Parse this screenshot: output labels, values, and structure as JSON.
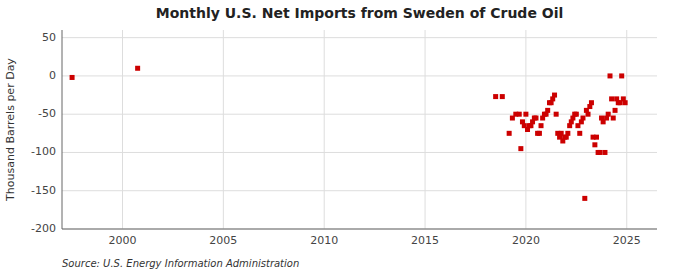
{
  "chart_data": {
    "type": "scatter",
    "title": "Monthly U.S. Net Imports from Sweden of Crude Oil",
    "ylabel": "Thousand Barrels per Day",
    "annotations": [
      "Source: U.S. Energy Information Administration"
    ],
    "color": "#cc0000",
    "marker": "square",
    "grid": true,
    "xlim": [
      1997.0,
      2026.5
    ],
    "ylim": [
      -200,
      60
    ],
    "xticks": [
      2000,
      2005,
      2010,
      2015,
      2020,
      2025
    ],
    "yticks": [
      -200,
      -150,
      -100,
      -50,
      0,
      50
    ],
    "x": [
      1997.5,
      2000.75,
      2018.5,
      2018.83,
      2019.17,
      2019.33,
      2019.5,
      2019.67,
      2019.75,
      2019.83,
      2019.92,
      2020.0,
      2020.08,
      2020.17,
      2020.25,
      2020.33,
      2020.42,
      2020.5,
      2020.58,
      2020.67,
      2020.75,
      2020.83,
      2020.92,
      2021.0,
      2021.08,
      2021.17,
      2021.25,
      2021.33,
      2021.42,
      2021.5,
      2021.58,
      2021.67,
      2021.75,
      2021.83,
      2021.92,
      2022.0,
      2022.08,
      2022.17,
      2022.25,
      2022.33,
      2022.42,
      2022.5,
      2022.58,
      2022.67,
      2022.75,
      2022.83,
      2022.92,
      2023.0,
      2023.08,
      2023.17,
      2023.25,
      2023.33,
      2023.42,
      2023.5,
      2023.58,
      2023.67,
      2023.75,
      2023.83,
      2023.92,
      2024.0,
      2024.08,
      2024.17,
      2024.25,
      2024.33,
      2024.42,
      2024.5,
      2024.58,
      2024.67,
      2024.75,
      2024.83,
      2024.92
    ],
    "values": [
      -2,
      10,
      -27,
      -27,
      -75,
      -55,
      -50,
      -50,
      -95,
      -60,
      -65,
      -50,
      -70,
      -65,
      -65,
      -60,
      -55,
      -55,
      -75,
      -75,
      -65,
      -55,
      -50,
      -50,
      -45,
      -35,
      -35,
      -30,
      -25,
      -50,
      -75,
      -80,
      -75,
      -85,
      -80,
      -80,
      -75,
      -65,
      -60,
      -55,
      -50,
      -50,
      -65,
      -75,
      -60,
      -55,
      -160,
      -45,
      -50,
      -40,
      -35,
      -80,
      -90,
      -80,
      -100,
      -100,
      -55,
      -60,
      -100,
      -55,
      -50,
      0,
      -30,
      -55,
      -45,
      -30,
      -35,
      -35,
      0,
      -30,
      -35
    ]
  }
}
